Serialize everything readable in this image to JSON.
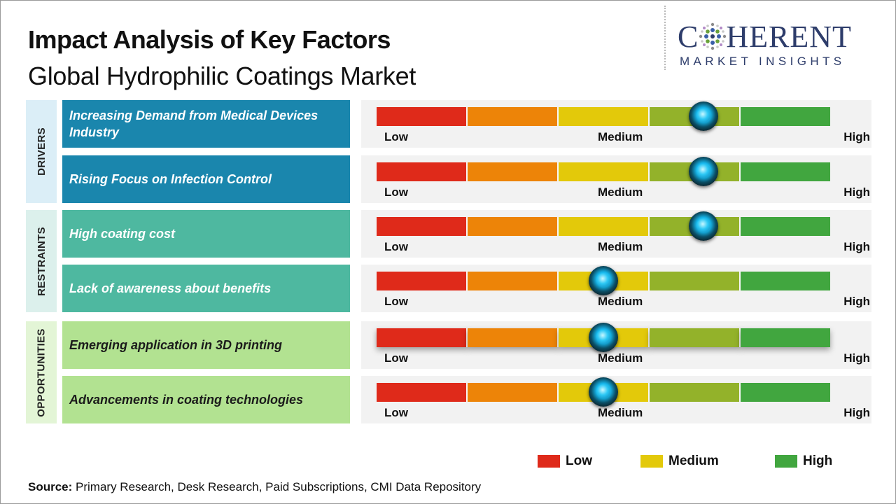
{
  "header": {
    "title": "Impact Analysis of Key Factors",
    "subtitle": "Global Hydrophilic Coatings Market"
  },
  "logo": {
    "text_before": "C",
    "text_after": "HERENT",
    "tagline": "MARKET INSIGHTS"
  },
  "scale": {
    "low": "Low",
    "medium": "Medium",
    "high": "High"
  },
  "colors": {
    "drivers_header": "#dbeef7",
    "drivers_factor": "#1a86ad",
    "restraints_header": "#dcf0ec",
    "restraints_factor": "#4eb8a0",
    "opportunities_header": "#e3f5d6",
    "opportunities_factor": "#b2e291",
    "segments": [
      "#df2a1a",
      "#ed8408",
      "#e3c90a",
      "#93b22a",
      "#41a63f"
    ]
  },
  "legend": [
    {
      "label": "Low",
      "color": "#df2a1a"
    },
    {
      "label": "Medium",
      "color": "#e3c90a"
    },
    {
      "label": "High",
      "color": "#41a63f"
    }
  ],
  "source": {
    "label": "Source:",
    "text": " Primary Research, Desk Research, Paid Subscriptions, CMI Data Repository"
  },
  "chart_data": {
    "type": "bar",
    "scale_levels": [
      "Low",
      "Medium",
      "High"
    ],
    "segments": 5,
    "categories": [
      {
        "name": "DRIVERS",
        "factors": [
          {
            "label": "Increasing Demand from Medical Devices Industry",
            "impact": 0.72
          },
          {
            "label": "Rising Focus on Infection Control",
            "impact": 0.72
          }
        ]
      },
      {
        "name": "RESTRAINTS",
        "factors": [
          {
            "label": "High coating cost",
            "impact": 0.72
          },
          {
            "label": "Lack of awareness about benefits",
            "impact": 0.5
          }
        ]
      },
      {
        "name": "OPPORTUNITIES",
        "factors": [
          {
            "label": "Emerging application in 3D printing",
            "impact": 0.5
          },
          {
            "label": "Advancements in coating technologies",
            "impact": 0.5
          }
        ]
      }
    ]
  }
}
